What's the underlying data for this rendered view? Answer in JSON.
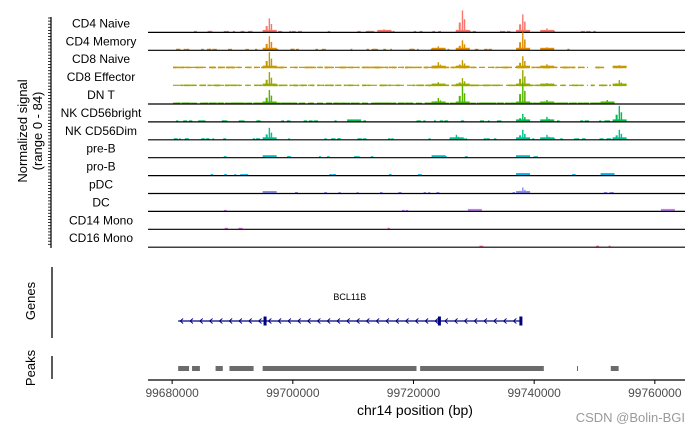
{
  "chart_data": {
    "type": "coverage-track",
    "title": "",
    "region": "chr14:99675000-99765000",
    "xlabel": "chr14 position (bp)",
    "ylabel": "Normalized signal",
    "ylabel_sub": "(range 0 - 84)",
    "yrange": [
      0,
      84
    ],
    "xlim": [
      99676000,
      99765000
    ],
    "x_ticks": [
      99680000,
      99700000,
      99720000,
      99740000,
      99760000
    ],
    "x_tick_labels": [
      "99680000",
      "99700000",
      "99720000",
      "99740000",
      "99760000"
    ],
    "tracks": [
      {
        "name": "CD4 Naive",
        "color": "#f8766d",
        "peaks": [
          [
            99696,
            14
          ],
          [
            99728,
            22
          ],
          [
            99738,
            18
          ],
          [
            99715,
            3
          ],
          [
            99742,
            4
          ]
        ]
      },
      {
        "name": "CD4 Memory",
        "color": "#e08b00",
        "peaks": [
          [
            99696,
            14
          ],
          [
            99728,
            10
          ],
          [
            99738,
            18
          ],
          [
            99724,
            4
          ],
          [
            99742,
            3
          ]
        ]
      },
      {
        "name": "CD8 Naive",
        "color": "#c49a00",
        "peaks": [
          [
            99696,
            16
          ],
          [
            99728,
            8
          ],
          [
            99738,
            12
          ],
          [
            99724,
            6
          ],
          [
            99742,
            4
          ],
          [
            99754,
            3
          ]
        ]
      },
      {
        "name": "CD8 Effector",
        "color": "#99a800",
        "peaks": [
          [
            99696,
            14
          ],
          [
            99728,
            8
          ],
          [
            99738,
            16
          ],
          [
            99724,
            4
          ],
          [
            99742,
            3
          ],
          [
            99754,
            6
          ]
        ]
      },
      {
        "name": "DN T",
        "color": "#53b400",
        "peaks": [
          [
            99696,
            14
          ],
          [
            99728,
            18
          ],
          [
            99738,
            22
          ],
          [
            99724,
            6
          ],
          [
            99742,
            4
          ],
          [
            99752,
            4
          ]
        ]
      },
      {
        "name": "NK CD56bright",
        "color": "#00bc56",
        "peaks": [
          [
            99738,
            8
          ],
          [
            99742,
            5
          ],
          [
            99754,
            16
          ],
          [
            99710,
            2
          ]
        ]
      },
      {
        "name": "NK CD56Dim",
        "color": "#00c094",
        "peaks": [
          [
            99696,
            12
          ],
          [
            99738,
            10
          ],
          [
            99742,
            5
          ],
          [
            99754,
            10
          ],
          [
            99727,
            5
          ]
        ]
      },
      {
        "name": "pre-B",
        "color": "#00bfc4",
        "peaks": [
          [
            99696,
            2
          ],
          [
            99724,
            2
          ],
          [
            99738,
            2
          ]
        ]
      },
      {
        "name": "pro-B",
        "color": "#00b6eb",
        "peaks": [
          [
            99738,
            1
          ],
          [
            99752,
            1
          ]
        ]
      },
      {
        "name": "pDC",
        "color": "#8b8cf0",
        "peaks": [
          [
            99738,
            6
          ],
          [
            99696,
            2
          ]
        ]
      },
      {
        "name": "DC",
        "color": "#c77cff",
        "peaks": [
          [
            99730,
            1
          ],
          [
            99762,
            1
          ]
        ]
      },
      {
        "name": "CD14 Mono",
        "color": "#f564e3",
        "peaks": []
      },
      {
        "name": "CD16 Mono",
        "color": "#ff64b0",
        "peaks": []
      }
    ],
    "genes": {
      "label": "Genes",
      "items": [
        {
          "name": "BCL11B",
          "start": 99681000,
          "end": 99737900,
          "strand": "-",
          "color": "#000080",
          "exons": [
            99695400,
            99724300,
            99737800
          ]
        }
      ]
    },
    "peaks_track": {
      "label": "Peaks",
      "color": "#6b6b6b",
      "regions": [
        [
          99681000,
          99682800
        ],
        [
          99683300,
          99684600
        ],
        [
          99687200,
          99688400
        ],
        [
          99689500,
          99693500
        ],
        [
          99695000,
          99720500
        ],
        [
          99721100,
          99741600
        ],
        [
          99747100,
          99747200
        ],
        [
          99752700,
          99754000
        ]
      ]
    }
  },
  "watermark": "CSDN @Bolin-BGI"
}
